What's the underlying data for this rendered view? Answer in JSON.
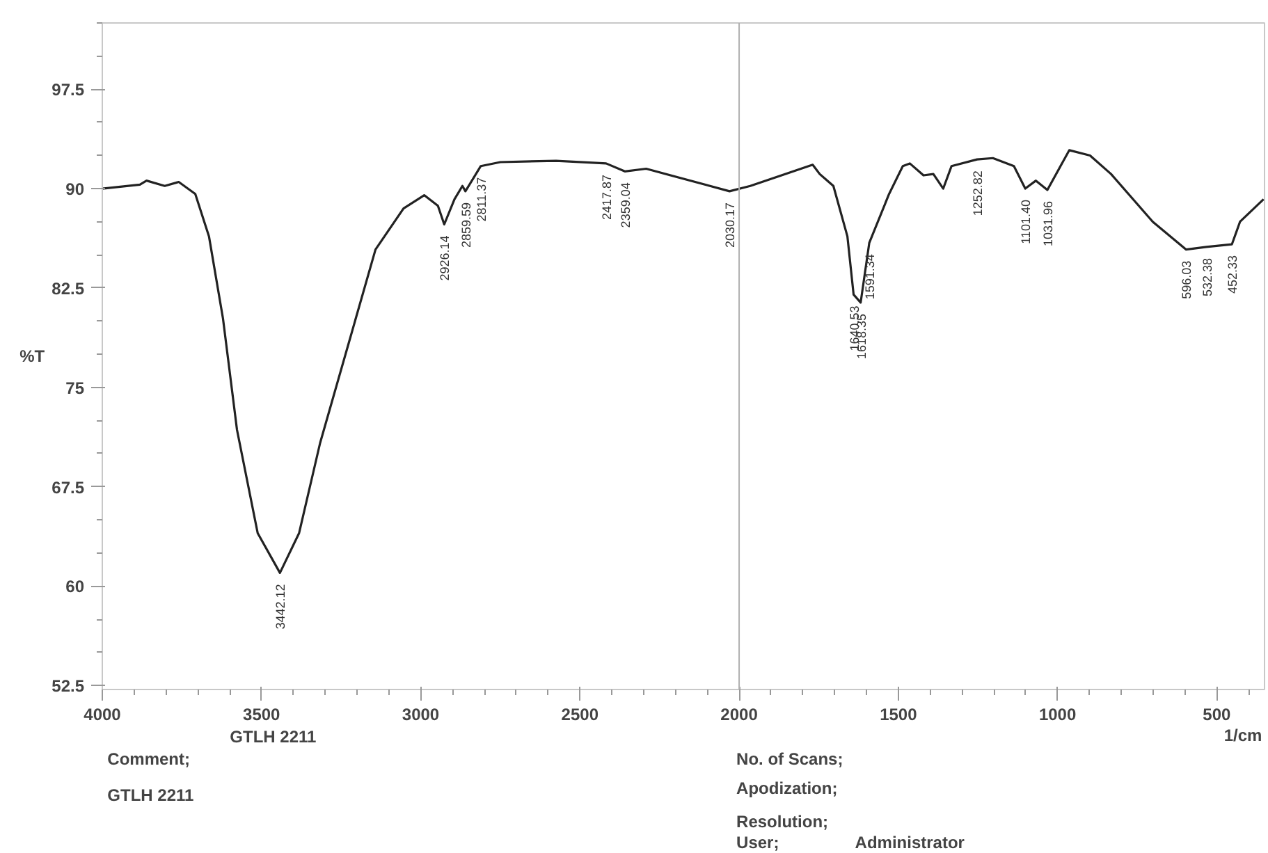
{
  "chart_data": {
    "type": "line",
    "ylabel": "%T",
    "xlabel": "1/cm",
    "xlim": [
      4000,
      350
    ],
    "xticks": [
      4000,
      3500,
      3000,
      2500,
      2000,
      1500,
      1000,
      500
    ],
    "ylim": [
      52.2,
      102.5
    ],
    "yticks": [
      52.5,
      60,
      67.5,
      75,
      82.5,
      90,
      97.5
    ],
    "grid": false,
    "marker": "none",
    "line_style": "solid",
    "ref_lines": [
      {
        "axis": "x",
        "value": 2000,
        "color": "#b0b0b0"
      }
    ],
    "series": [
      {
        "color": "#222222",
        "x": [
          4000,
          3882,
          3861,
          3804,
          3760,
          3708,
          3665,
          3621,
          3577,
          3512,
          3442.12,
          3382,
          3316,
          3229,
          3142,
          3054,
          2989,
          2946,
          2926.14,
          2894,
          2869,
          2859.59,
          2811.37,
          2750,
          2575,
          2417.87,
          2359.04,
          2292,
          2030.17,
          1965,
          1769,
          1747,
          1704,
          1660,
          1640.53,
          1618.35,
          1591.34,
          1529,
          1486,
          1464,
          1421,
          1390,
          1359,
          1333,
          1252.82,
          1203,
          1137,
          1101.4,
          1068,
          1031.96,
          963,
          898,
          832,
          701,
          596.03,
          532.38,
          452.33,
          427,
          353
        ],
        "values": [
          90.0,
          90.3,
          90.6,
          90.2,
          90.5,
          89.6,
          86.4,
          80.2,
          71.8,
          64.0,
          61.0,
          64.0,
          70.8,
          78.1,
          85.4,
          88.5,
          89.5,
          88.7,
          87.3,
          89.2,
          90.2,
          89.8,
          91.7,
          92.0,
          92.1,
          91.9,
          91.3,
          91.5,
          89.8,
          90.2,
          91.8,
          91.1,
          90.2,
          86.4,
          82.0,
          81.4,
          85.9,
          89.6,
          91.7,
          91.9,
          91.0,
          91.1,
          90.0,
          91.7,
          92.2,
          92.3,
          91.7,
          90.0,
          90.6,
          89.9,
          92.9,
          92.5,
          91.1,
          87.5,
          85.4,
          85.6,
          85.8,
          87.5,
          89.2
        ]
      }
    ],
    "annotations": [
      {
        "text": "3442.12",
        "x": 3442.12,
        "y": 61.0
      },
      {
        "text": "2926.14",
        "x": 2926.14,
        "y": 87.3
      },
      {
        "text": "2859.59",
        "x": 2859.59,
        "y": 89.8
      },
      {
        "text": "2811.37",
        "x": 2811.37,
        "y": 91.7
      },
      {
        "text": "2417.87",
        "x": 2417.87,
        "y": 91.9
      },
      {
        "text": "2359.04",
        "x": 2359.04,
        "y": 91.3
      },
      {
        "text": "2030.17",
        "x": 2030.17,
        "y": 89.8
      },
      {
        "text": "1640.53",
        "x": 1640.53,
        "y": 82.0
      },
      {
        "text": "1618.35",
        "x": 1618.35,
        "y": 81.4
      },
      {
        "text": "1591.34",
        "x": 1591.34,
        "y": 85.9
      },
      {
        "text": "1252.82",
        "x": 1252.82,
        "y": 92.2
      },
      {
        "text": "1101.40",
        "x": 1101.4,
        "y": 90.0
      },
      {
        "text": "1031.96",
        "x": 1031.96,
        "y": 89.9
      },
      {
        "text": "596.03",
        "x": 596.03,
        "y": 85.4
      },
      {
        "text": "532.38",
        "x": 532.38,
        "y": 85.6
      },
      {
        "text": "452.33",
        "x": 452.33,
        "y": 85.8
      },
      "GTLH 2211",
      "Comment;",
      "GTLH 2211",
      "No. of Scans;",
      "Apodization;",
      "Resolution;",
      "User;",
      "Administrator"
    ]
  }
}
